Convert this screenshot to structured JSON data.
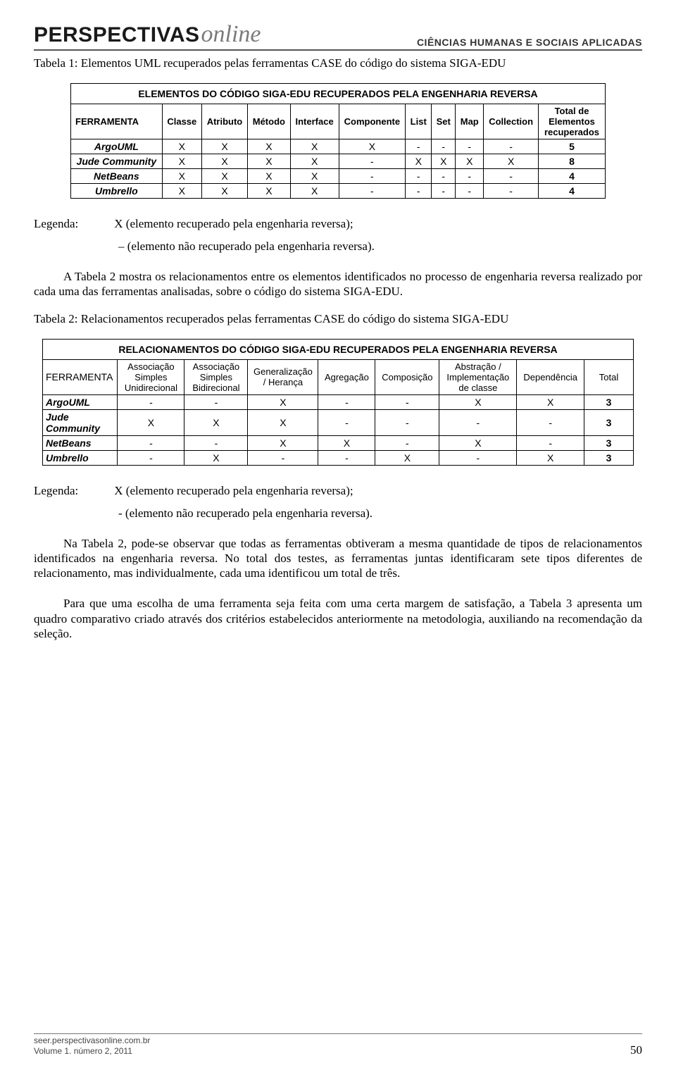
{
  "header": {
    "logo_main": "PERSPECTIVAS",
    "logo_script": "online",
    "subtitle": "CIÊNCIAS HUMANAS E SOCIAIS APLICADAS"
  },
  "caption1": "Tabela 1: Elementos UML recuperados pelas ferramentas CASE do código do sistema SIGA-EDU",
  "table1": {
    "title": "ELEMENTOS DO CÓDIGO SIGA-EDU RECUPERADOS PELA ENGENHARIA REVERSA",
    "headers": [
      "FERRAMENTA",
      "Classe",
      "Atributo",
      "Método",
      "Interface",
      "Componente",
      "List",
      "Set",
      "Map",
      "Collection",
      "Total de Elementos recuperados"
    ],
    "rows": [
      {
        "tool": "ArgoUML",
        "cells": [
          "X",
          "X",
          "X",
          "X",
          "X",
          "-",
          "-",
          "-",
          "-",
          "5"
        ]
      },
      {
        "tool": "Jude Community",
        "cells": [
          "X",
          "X",
          "X",
          "X",
          "-",
          "X",
          "X",
          "X",
          "X",
          "8"
        ]
      },
      {
        "tool": "NetBeans",
        "cells": [
          "X",
          "X",
          "X",
          "X",
          "-",
          "-",
          "-",
          "-",
          "-",
          "4"
        ]
      },
      {
        "tool": "Umbrello",
        "cells": [
          "X",
          "X",
          "X",
          "X",
          "-",
          "-",
          "-",
          "-",
          "-",
          "4"
        ]
      }
    ]
  },
  "legend1": {
    "label": "Legenda:",
    "line1": "X (elemento recuperado pela engenharia reversa);",
    "line2": "– (elemento não recuperado pela engenharia reversa)."
  },
  "para1": "A Tabela 2 mostra os relacionamentos entre os elementos identificados no processo de engenharia reversa realizado por cada uma das ferramentas analisadas, sobre o código do sistema SIGA-EDU.",
  "caption2": "Tabela 2: Relacionamentos recuperados pelas ferramentas CASE do código do sistema SIGA-EDU",
  "table2": {
    "title": "RELACIONAMENTOS DO CÓDIGO SIGA-EDU RECUPERADOS PELA ENGENHARIA REVERSA",
    "headers": [
      "FERRAMENTA",
      "Associação Simples Unidirecional",
      "Associação Simples Bidirecional",
      "Generalização / Herança",
      "Agregação",
      "Composição",
      "Abstração / Implementação de classe",
      "Dependência",
      "Total"
    ],
    "rows": [
      {
        "tool": "ArgoUML",
        "cells": [
          "-",
          "-",
          "X",
          "-",
          "-",
          "X",
          "X",
          "3"
        ]
      },
      {
        "tool": "Jude Community",
        "cells": [
          "X",
          "X",
          "X",
          "-",
          "-",
          "-",
          "-",
          "3"
        ]
      },
      {
        "tool": "NetBeans",
        "cells": [
          "-",
          "-",
          "X",
          "X",
          "-",
          "X",
          "-",
          "3"
        ]
      },
      {
        "tool": "Umbrello",
        "cells": [
          "-",
          "X",
          "-",
          "-",
          "X",
          "-",
          "X",
          "3"
        ]
      }
    ]
  },
  "legend2": {
    "label": "Legenda:",
    "line1": "X (elemento recuperado pela engenharia reversa);",
    "line2": "- (elemento não recuperado pela engenharia reversa)."
  },
  "para2": "Na Tabela 2, pode-se observar que todas as ferramentas obtiveram a mesma quantidade de tipos de relacionamentos identificados na engenharia reversa. No total dos testes, as ferramentas juntas identificaram sete tipos diferentes de relacionamento, mas individualmente, cada uma identificou um total de três.",
  "para3": "Para que uma escolha de uma ferramenta seja feita com uma certa margem de satisfação, a Tabela 3 apresenta um quadro comparativo criado através dos critérios estabelecidos anteriormente na metodologia, auxiliando na recomendação da seleção.",
  "footer": {
    "url": "seer.perspectivasonline.com.br",
    "issue": "Volume 1. número 2, 2011",
    "page": "50"
  }
}
